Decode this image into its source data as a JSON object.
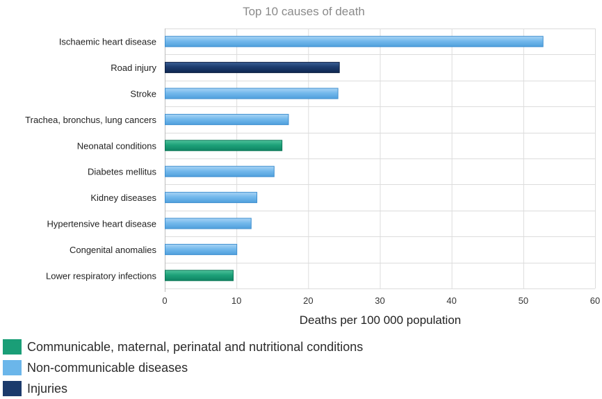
{
  "chart_data": {
    "type": "bar",
    "orientation": "horizontal",
    "title": "Top 10 causes of death",
    "xlabel": "Deaths per 100 000 population",
    "ylabel": "",
    "xlim": [
      0,
      60
    ],
    "xticks": [
      0,
      10,
      20,
      30,
      40,
      50,
      60
    ],
    "grid": true,
    "legend_position": "bottom-left",
    "categories": [
      "Ischaemic heart disease",
      "Road injury",
      "Stroke",
      "Trachea, bronchus, lung cancers",
      "Neonatal conditions",
      "Diabetes mellitus",
      "Kidney diseases",
      "Hypertensive heart disease",
      "Congenital anomalies",
      "Lower respiratory infections"
    ],
    "values": [
      52.7,
      24.3,
      24.1,
      17.2,
      16.3,
      15.2,
      12.8,
      12.0,
      10.0,
      9.5
    ],
    "groups": [
      "Non-communicable diseases",
      "Injuries",
      "Non-communicable diseases",
      "Non-communicable diseases",
      "Communicable, maternal, perinatal and nutritional conditions",
      "Non-communicable diseases",
      "Non-communicable diseases",
      "Non-communicable diseases",
      "Non-communicable diseases",
      "Communicable, maternal, perinatal and nutritional conditions"
    ],
    "legend": [
      {
        "name": "Communicable, maternal, perinatal and nutritional conditions",
        "color": "#1a9e77"
      },
      {
        "name": "Non-communicable diseases",
        "color": "#6bb6ea"
      },
      {
        "name": "Injuries",
        "color": "#1b3a6b"
      }
    ]
  }
}
